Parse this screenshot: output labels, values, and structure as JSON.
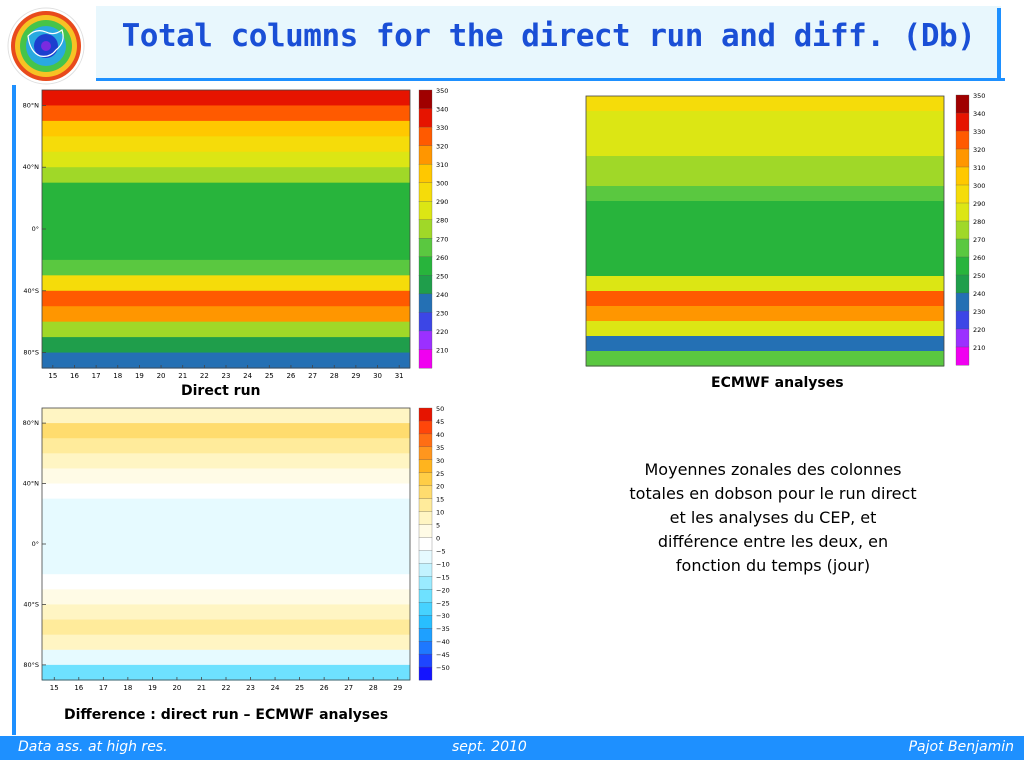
{
  "slide": {
    "title": "Total columns for the direct run and diff. (Db)",
    "description": "Moyennes zonales des colonnes totales en dobson pour le run direct et les analyses du CEP, et différence entre les deux, en fonction du temps (jour)",
    "footer": {
      "left": "Data ass. at high res.",
      "center": "sept. 2010",
      "right": "Pajot Benjamin"
    }
  },
  "chart_data": [
    {
      "type": "heatmap",
      "title": "Direct run",
      "x": [
        15,
        16,
        17,
        18,
        19,
        20,
        21,
        22,
        23,
        24,
        25,
        26,
        27,
        28,
        29,
        30,
        31
      ],
      "xlabels": [
        "15",
        "16",
        "17",
        "18",
        "19",
        "20",
        "21",
        "22",
        "23",
        "24",
        "25",
        "26",
        "27",
        "28",
        "29",
        "30",
        "31"
      ],
      "ylabels": [
        "80°N",
        "40°N",
        "0°",
        "40°S",
        "80°S"
      ],
      "colorbar": [
        "350",
        "340",
        "330",
        "320",
        "310",
        "300",
        "290",
        "280",
        "270",
        "260",
        "250",
        "240",
        "230",
        "220",
        "210"
      ],
      "bands": [
        {
          "lat": 85,
          "v": 345
        },
        {
          "lat": 75,
          "v": 330
        },
        {
          "lat": 65,
          "v": 318
        },
        {
          "lat": 55,
          "v": 305
        },
        {
          "lat": 45,
          "v": 292
        },
        {
          "lat": 35,
          "v": 280
        },
        {
          "lat": 25,
          "v": 268
        },
        {
          "lat": 15,
          "v": 262
        },
        {
          "lat": 5,
          "v": 260
        },
        {
          "lat": -5,
          "v": 262
        },
        {
          "lat": -15,
          "v": 265
        },
        {
          "lat": -25,
          "v": 275
        },
        {
          "lat": -35,
          "v": 305
        },
        {
          "lat": -45,
          "v": 338
        },
        {
          "lat": -55,
          "v": 325
        },
        {
          "lat": -65,
          "v": 285
        },
        {
          "lat": -75,
          "v": 255
        },
        {
          "lat": -85,
          "v": 245
        }
      ]
    },
    {
      "type": "heatmap",
      "title": "ECMWF analyses",
      "colorbar": [
        "350",
        "340",
        "330",
        "320",
        "310",
        "300",
        "290",
        "280",
        "270",
        "260",
        "250",
        "240",
        "230",
        "220",
        "210"
      ],
      "bands": [
        {
          "lat": 85,
          "v": 300
        },
        {
          "lat": 75,
          "v": 298
        },
        {
          "lat": 65,
          "v": 295
        },
        {
          "lat": 55,
          "v": 292
        },
        {
          "lat": 45,
          "v": 287
        },
        {
          "lat": 35,
          "v": 280
        },
        {
          "lat": 25,
          "v": 272
        },
        {
          "lat": 15,
          "v": 265
        },
        {
          "lat": 5,
          "v": 262
        },
        {
          "lat": -5,
          "v": 262
        },
        {
          "lat": -15,
          "v": 264
        },
        {
          "lat": -25,
          "v": 268
        },
        {
          "lat": -35,
          "v": 290
        },
        {
          "lat": -45,
          "v": 335
        },
        {
          "lat": -55,
          "v": 320
        },
        {
          "lat": -65,
          "v": 290
        },
        {
          "lat": -75,
          "v": 245
        },
        {
          "lat": -85,
          "v": 270
        }
      ]
    },
    {
      "type": "heatmap",
      "title": "Difference : direct run – ECMWF analyses",
      "x": [
        15,
        16,
        17,
        18,
        19,
        20,
        21,
        22,
        23,
        24,
        25,
        26,
        27,
        28,
        29
      ],
      "xlabels": [
        "15",
        "16",
        "17",
        "18",
        "19",
        "20",
        "21",
        "22",
        "23",
        "24",
        "25",
        "26",
        "27",
        "28",
        "29"
      ],
      "ylabels": [
        "80°N",
        "40°N",
        "0°",
        "40°S",
        "80°S"
      ],
      "colorbar": [
        "50",
        "45",
        "40",
        "35",
        "30",
        "25",
        "20",
        "15",
        "10",
        "5",
        "0",
        "−5",
        "−10",
        "−15",
        "−20",
        "−25",
        "−30",
        "−35",
        "−40",
        "−45",
        "−50"
      ],
      "bands": [
        {
          "lat": 85,
          "v": 8
        },
        {
          "lat": 75,
          "v": 18
        },
        {
          "lat": 65,
          "v": 14
        },
        {
          "lat": 55,
          "v": 10
        },
        {
          "lat": 45,
          "v": 6
        },
        {
          "lat": 35,
          "v": 2
        },
        {
          "lat": 25,
          "v": -4
        },
        {
          "lat": 15,
          "v": -5
        },
        {
          "lat": 5,
          "v": -3
        },
        {
          "lat": -5,
          "v": -4
        },
        {
          "lat": -15,
          "v": -6
        },
        {
          "lat": -25,
          "v": -2
        },
        {
          "lat": -35,
          "v": 6
        },
        {
          "lat": -45,
          "v": 12
        },
        {
          "lat": -55,
          "v": 16
        },
        {
          "lat": -65,
          "v": 8
        },
        {
          "lat": -75,
          "v": -6
        },
        {
          "lat": -85,
          "v": -22
        }
      ]
    }
  ]
}
